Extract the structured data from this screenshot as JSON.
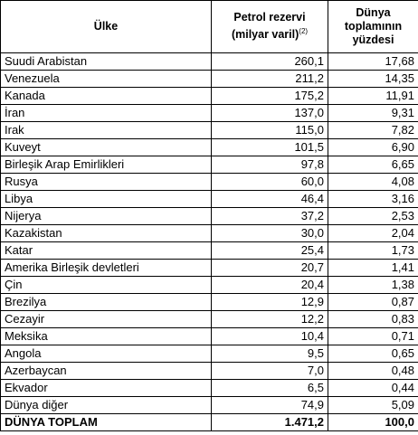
{
  "header": {
    "country": "Ülke",
    "reserve": "Petrol rezervi (milyar varil)",
    "reserve_note": "(2)",
    "share": "Dünya toplamının yüzdesi"
  },
  "rows": [
    [
      "Suudi Arabistan",
      "260,1",
      "17,68"
    ],
    [
      "Venezuela",
      "211,2",
      "14,35"
    ],
    [
      "Kanada",
      "175,2",
      "11,91"
    ],
    [
      "İran",
      "137,0",
      "9,31"
    ],
    [
      "Irak",
      "115,0",
      "7,82"
    ],
    [
      "Kuveyt",
      "101,5",
      "6,90"
    ],
    [
      "Birleşik Arap Emirlikleri",
      "97,8",
      "6,65"
    ],
    [
      "Rusya",
      "60,0",
      "4,08"
    ],
    [
      "Libya",
      "46,4",
      "3,16"
    ],
    [
      "Nijerya",
      "37,2",
      "2,53"
    ],
    [
      "Kazakistan",
      "30,0",
      "2,04"
    ],
    [
      "Katar",
      "25,4",
      "1,73"
    ],
    [
      "Amerika Birleşik devletleri",
      "20,7",
      "1,41"
    ],
    [
      "Çin",
      "20,4",
      "1,38"
    ],
    [
      "Brezilya",
      "12,9",
      "0,87"
    ],
    [
      "Cezayir",
      "12,2",
      "0,83"
    ],
    [
      "Meksika",
      "10,4",
      "0,71"
    ],
    [
      "Angola",
      "9,5",
      "0,65"
    ],
    [
      "Azerbaycan",
      "7,0",
      "0,48"
    ],
    [
      "Ekvador",
      "6,5",
      "0,44"
    ],
    [
      "Dünya diğer",
      "74,9",
      "5,09"
    ]
  ],
  "total": [
    "DÜNYA TOPLAM",
    "1.471,2",
    "100,0"
  ]
}
